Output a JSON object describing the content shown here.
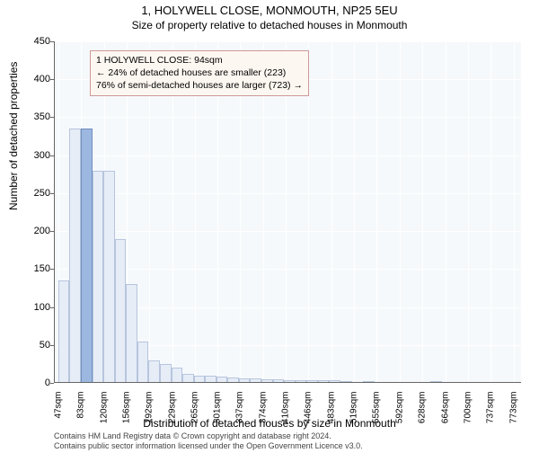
{
  "title": "1, HOLYWELL CLOSE, MONMOUTH, NP25 5EU",
  "subtitle": "Size of property relative to detached houses in Monmouth",
  "y_axis_label": "Number of detached properties",
  "x_axis_label": "Distribution of detached houses by size in Monmouth",
  "footer_line1": "Contains HM Land Registry data © Crown copyright and database right 2024.",
  "footer_line2": "Contains public sector information licensed under the Open Government Licence v3.0.",
  "annotation": {
    "line1": "1 HOLYWELL CLOSE: 94sqm",
    "line2": "← 24% of detached houses are smaller (223)",
    "line3": "76% of semi-detached houses are larger (723) →"
  },
  "chart": {
    "type": "histogram",
    "ylim": [
      0,
      450
    ],
    "ytick_step": 50,
    "x_tick_labels": [
      "47sqm",
      "83sqm",
      "120sqm",
      "156sqm",
      "192sqm",
      "229sqm",
      "265sqm",
      "301sqm",
      "337sqm",
      "374sqm",
      "410sqm",
      "446sqm",
      "483sqm",
      "519sqm",
      "555sqm",
      "592sqm",
      "628sqm",
      "664sqm",
      "700sqm",
      "737sqm",
      "773sqm"
    ],
    "x_tick_positions": [
      47,
      83,
      120,
      156,
      192,
      229,
      265,
      301,
      337,
      374,
      410,
      446,
      483,
      519,
      555,
      592,
      628,
      664,
      700,
      737,
      773
    ],
    "x_range": [
      40,
      785
    ],
    "bar_values": [
      135,
      335,
      335,
      280,
      280,
      190,
      130,
      55,
      30,
      25,
      20,
      12,
      10,
      9,
      8,
      7,
      6,
      6,
      5,
      5,
      4,
      4,
      3,
      3,
      3,
      2,
      0,
      2,
      0,
      0,
      0,
      0,
      0,
      2,
      0,
      0,
      0,
      0,
      0,
      0,
      0
    ],
    "bar_start": 47,
    "bar_width_units": 18,
    "plot_bg_color": "#f6f9fc",
    "grid_color": "#ffffff",
    "bar_fill": "#e6edf7",
    "bar_stroke": "#b7c5dd",
    "highlight_fill": "#9db8e0",
    "highlight_stroke": "#6e8fbf",
    "highlight_x": 94,
    "annotation_bg": "#fdf7f1",
    "annotation_border": "#c99",
    "title_fontsize": 13,
    "subtitle_fontsize": 12,
    "axis_label_fontsize": 12,
    "tick_fontsize": 11
  }
}
